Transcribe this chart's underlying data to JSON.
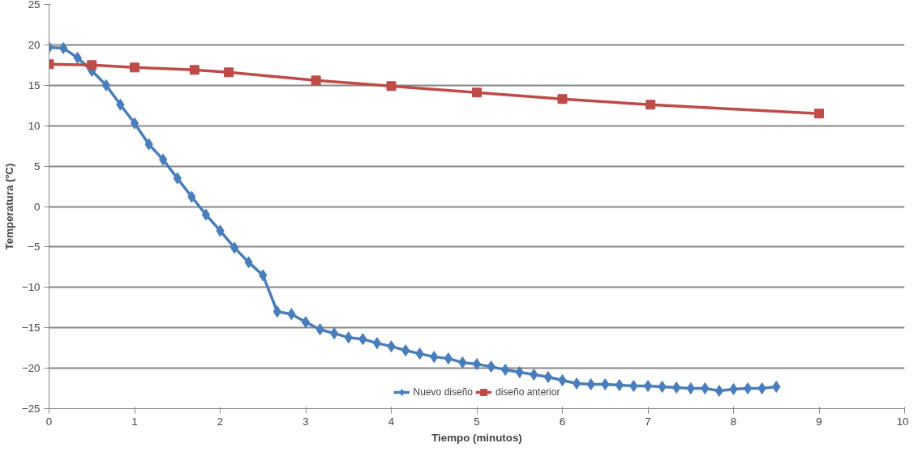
{
  "chart_data": {
    "type": "line",
    "xlabel": "Tiempo (minutos)",
    "ylabel": "Temperatura (ºC)",
    "xlim": [
      0,
      10
    ],
    "xticks": [
      0,
      1,
      2,
      3,
      4,
      5,
      6,
      7,
      8,
      9,
      10
    ],
    "ylim": [
      -25,
      25
    ],
    "yticks": [
      -25,
      -20,
      -15,
      -10,
      -5,
      0,
      5,
      10,
      15,
      20,
      25
    ],
    "grid": "y",
    "legend": "bottom",
    "line_style": "solid",
    "series": [
      {
        "name": "Nuevo diseño",
        "color": "#4a7ebb",
        "marker": "diamond",
        "x": [
          0,
          0.167,
          0.333,
          0.5,
          0.667,
          0.833,
          1.0,
          1.167,
          1.333,
          1.5,
          1.667,
          1.833,
          2.0,
          2.167,
          2.333,
          2.5,
          2.667,
          2.833,
          3.0,
          3.167,
          3.333,
          3.5,
          3.667,
          3.833,
          4.0,
          4.167,
          4.333,
          4.5,
          4.667,
          4.833,
          5.0,
          5.167,
          5.333,
          5.5,
          5.667,
          5.833,
          6.0,
          6.167,
          6.333,
          6.5,
          6.667,
          6.833,
          7.0,
          7.167,
          7.333,
          7.5,
          7.667,
          7.833,
          8.0,
          8.167,
          8.333,
          8.5
        ],
        "values": [
          19.7,
          19.6,
          18.4,
          16.8,
          15.0,
          12.6,
          10.3,
          7.7,
          5.8,
          3.5,
          1.2,
          -1.0,
          -3.0,
          -5.1,
          -6.9,
          -8.5,
          -13.0,
          -13.3,
          -14.3,
          -15.2,
          -15.7,
          -16.2,
          -16.4,
          -16.9,
          -17.3,
          -17.8,
          -18.2,
          -18.6,
          -18.8,
          -19.3,
          -19.5,
          -19.8,
          -20.2,
          -20.5,
          -20.8,
          -21.1,
          -21.5,
          -21.9,
          -22.0,
          -22.0,
          -22.1,
          -22.2,
          -22.2,
          -22.3,
          -22.4,
          -22.5,
          -22.5,
          -22.8,
          -22.6,
          -22.5,
          -22.5,
          -22.3
        ]
      },
      {
        "name": "diseño anterior",
        "color": "#be4b48",
        "marker": "square",
        "x": [
          0,
          0.5,
          1.0,
          1.7,
          2.1,
          3.12,
          4.0,
          5.0,
          6.0,
          7.03,
          9.0
        ],
        "values": [
          17.6,
          17.5,
          17.2,
          16.9,
          16.6,
          15.6,
          14.9,
          14.1,
          13.3,
          12.6,
          11.5
        ]
      }
    ]
  }
}
